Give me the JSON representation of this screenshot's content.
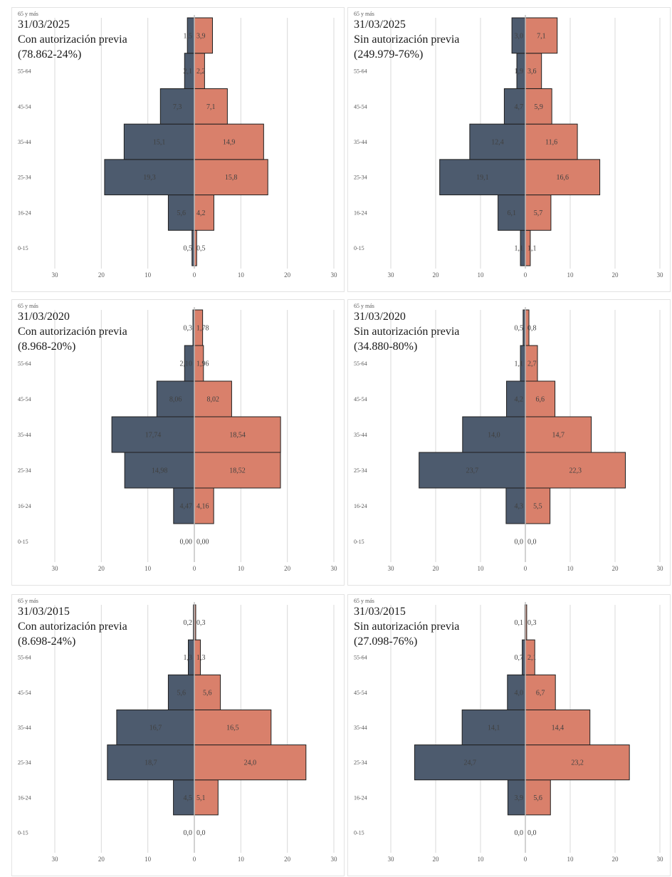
{
  "chart_data": [
    {
      "type": "bar",
      "orientation": "horizontal-diverging",
      "date": "31/03/2025",
      "label": "Con autorización  previa",
      "total": "(78.862-24%)",
      "categories": [
        "0-15",
        "16-24",
        "25-34",
        "35-44",
        "45-54",
        "55-64",
        "65 y más"
      ],
      "series": [
        {
          "values": [
            0.5,
            5.6,
            19.3,
            15.1,
            7.3,
            2.1,
            1.5
          ],
          "labels": [
            "0,5",
            "5,6",
            "19,3",
            "15,1",
            "7,3",
            "2,1",
            "1,5"
          ]
        },
        {
          "values": [
            0.5,
            4.2,
            15.8,
            14.9,
            7.1,
            2.2,
            3.9
          ],
          "labels": [
            "0,5",
            "4,2",
            "15,8",
            "14,9",
            "7,1",
            "2,2",
            "3,9"
          ]
        }
      ],
      "xticks": [
        "30",
        "20",
        "10",
        "0",
        "10",
        "20",
        "30"
      ],
      "xlim": [
        -30,
        30
      ],
      "grid": true
    },
    {
      "type": "bar",
      "orientation": "horizontal-diverging",
      "date": "31/03/2025",
      "label": "Sin autorización  previa",
      "total": "(249.979-76%)",
      "categories": [
        "0-15",
        "16-24",
        "25-34",
        "35-44",
        "45-54",
        "55-64",
        "65 y más"
      ],
      "series": [
        {
          "values": [
            1.1,
            6.1,
            19.1,
            12.4,
            4.7,
            1.9,
            3.0
          ],
          "labels": [
            "1,1",
            "6,1",
            "19,1",
            "12,4",
            "4,7",
            "1,9",
            "3,0"
          ]
        },
        {
          "values": [
            1.1,
            5.7,
            16.6,
            11.6,
            5.9,
            3.6,
            7.1
          ],
          "labels": [
            "1,1",
            "5,7",
            "16,6",
            "11,6",
            "5,9",
            "3,6",
            "7,1"
          ]
        }
      ],
      "xticks": [
        "30",
        "20",
        "10",
        "0",
        "10",
        "20",
        "30"
      ],
      "xlim": [
        -30,
        30
      ],
      "grid": true
    },
    {
      "type": "bar",
      "orientation": "horizontal-diverging",
      "date": "31/03/2020",
      "label": "Con autorización  previa",
      "total": "(8.968-20%)",
      "categories": [
        "0-15",
        "16-24",
        "25-34",
        "35-44",
        "45-54",
        "55-64",
        "65 y más"
      ],
      "series": [
        {
          "values": [
            0.0,
            4.47,
            14.98,
            17.74,
            8.06,
            2.1,
            0.3
          ],
          "labels": [
            "0,00",
            "4,47",
            "14,98",
            "17,74",
            "8,06",
            "2,10",
            "0,3"
          ]
        },
        {
          "values": [
            0.0,
            4.16,
            18.52,
            18.54,
            8.02,
            1.96,
            1.78
          ],
          "labels": [
            "0,00",
            "4,16",
            "18,52",
            "18,54",
            "8,02",
            "1,96",
            "1,78"
          ]
        }
      ],
      "xticks": [
        "30",
        "20",
        "10",
        "0",
        "10",
        "20",
        "30"
      ],
      "xlim": [
        -30,
        30
      ],
      "grid": true
    },
    {
      "type": "bar",
      "orientation": "horizontal-diverging",
      "date": "31/03/2020",
      "label": "Sin autorización  previa",
      "total": "(34.880-80%)",
      "categories": [
        "0-15",
        "16-24",
        "25-34",
        "35-44",
        "45-54",
        "55-64",
        "65 y más"
      ],
      "series": [
        {
          "values": [
            0.0,
            4.3,
            23.7,
            14.0,
            4.2,
            1.1,
            0.5
          ],
          "labels": [
            "0,0",
            "4,3",
            "23,7",
            "14,0",
            "4,2",
            "1,1",
            "0,5"
          ]
        },
        {
          "values": [
            0.0,
            5.5,
            22.3,
            14.7,
            6.6,
            2.7,
            0.8
          ],
          "labels": [
            "0,0",
            "5,5",
            "22,3",
            "14,7",
            "6,6",
            "2,7",
            "0,8"
          ]
        }
      ],
      "xticks": [
        "30",
        "20",
        "10",
        "0",
        "10",
        "20",
        "30"
      ],
      "xlim": [
        -30,
        30
      ],
      "grid": true
    },
    {
      "type": "bar",
      "orientation": "horizontal-diverging",
      "date": "31/03/2015",
      "label": "Con autorización  previa",
      "total": "(8.698-24%)",
      "categories": [
        "0-15",
        "16-24",
        "25-34",
        "35-44",
        "45-54",
        "55-64",
        "65 y más"
      ],
      "series": [
        {
          "values": [
            0.0,
            4.5,
            18.7,
            16.7,
            5.6,
            1.3,
            0.2
          ],
          "labels": [
            "0,0",
            "4,5",
            "18,7",
            "16,7",
            "5,6",
            "1,3",
            "0,2"
          ]
        },
        {
          "values": [
            0.0,
            5.1,
            24.0,
            16.5,
            5.6,
            1.3,
            0.3
          ],
          "labels": [
            "0,0",
            "5,1",
            "24,0",
            "16,5",
            "5,6",
            "1,3",
            "0,3"
          ]
        }
      ],
      "xticks": [
        "30",
        "20",
        "10",
        "0",
        "10",
        "20",
        "30"
      ],
      "xlim": [
        -30,
        30
      ],
      "grid": true
    },
    {
      "type": "bar",
      "orientation": "horizontal-diverging",
      "date": "31/03/2015",
      "label": "Sin autorización  previa",
      "total": "(27.098-76%)",
      "categories": [
        "0-15",
        "16-24",
        "25-34",
        "35-44",
        "45-54",
        "55-64",
        "65 y más"
      ],
      "series": [
        {
          "values": [
            0.0,
            3.9,
            24.7,
            14.1,
            4.0,
            0.7,
            0.1
          ],
          "labels": [
            "0,0",
            "3,9",
            "24,7",
            "14,1",
            "4,0",
            "0,7",
            "0,1"
          ]
        },
        {
          "values": [
            0.0,
            5.6,
            23.2,
            14.4,
            6.7,
            2.1,
            0.3
          ],
          "labels": [
            "0,0",
            "5,6",
            "23,2",
            "14,4",
            "6,7",
            "2,1",
            "0,3"
          ]
        }
      ],
      "xticks": [
        "30",
        "20",
        "10",
        "0",
        "10",
        "20",
        "30"
      ],
      "xlim": [
        -30,
        30
      ],
      "grid": true
    }
  ],
  "colors": {
    "left": "#4d5b6e",
    "right": "#d9806b",
    "grid": "#d9d9d9",
    "axis": "#bfbfbf"
  }
}
